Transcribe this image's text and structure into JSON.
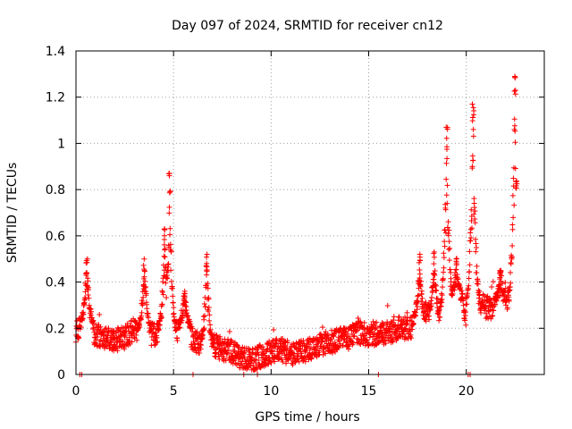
{
  "chart_data": {
    "type": "scatter",
    "title": "Day 097 of 2024, SRMTID for receiver cn12",
    "xlabel": "GPS time / hours",
    "ylabel": "SRMTID / TECUs",
    "xlim": [
      0,
      24
    ],
    "ylim": [
      0,
      1.4
    ],
    "xticks": [
      0,
      5,
      10,
      15,
      20
    ],
    "xtick_labels": [
      "0",
      "5",
      "10",
      "15",
      "20"
    ],
    "yticks": [
      0,
      0.2,
      0.4,
      0.6,
      0.8,
      1.0,
      1.2,
      1.4
    ],
    "ytick_labels": [
      "0",
      "0.2",
      "0.4",
      "0.6",
      "0.8",
      "1",
      "1.2",
      "1.4"
    ],
    "grid": true,
    "marker": "+",
    "color": "#ff0000",
    "x_range": [
      0.0,
      22.6
    ],
    "baseline_profile": [
      [
        0.0,
        0.19
      ],
      [
        0.5,
        0.22
      ],
      [
        1.0,
        0.17
      ],
      [
        1.5,
        0.16
      ],
      [
        2.0,
        0.15
      ],
      [
        2.5,
        0.16
      ],
      [
        3.0,
        0.2
      ],
      [
        3.5,
        0.19
      ],
      [
        4.0,
        0.17
      ],
      [
        4.5,
        0.2
      ],
      [
        5.0,
        0.17
      ],
      [
        5.5,
        0.22
      ],
      [
        6.0,
        0.15
      ],
      [
        6.5,
        0.12
      ],
      [
        7.0,
        0.13
      ],
      [
        7.5,
        0.11
      ],
      [
        8.0,
        0.1
      ],
      [
        8.5,
        0.07
      ],
      [
        9.0,
        0.06
      ],
      [
        9.5,
        0.08
      ],
      [
        10.0,
        0.1
      ],
      [
        10.5,
        0.11
      ],
      [
        11.0,
        0.08
      ],
      [
        11.5,
        0.1
      ],
      [
        12.0,
        0.11
      ],
      [
        12.5,
        0.13
      ],
      [
        13.0,
        0.14
      ],
      [
        13.5,
        0.15
      ],
      [
        14.0,
        0.16
      ],
      [
        14.5,
        0.18
      ],
      [
        15.0,
        0.17
      ],
      [
        15.5,
        0.18
      ],
      [
        16.0,
        0.18
      ],
      [
        16.5,
        0.2
      ],
      [
        17.0,
        0.2
      ],
      [
        17.5,
        0.22
      ],
      [
        18.0,
        0.27
      ],
      [
        18.5,
        0.22
      ],
      [
        19.0,
        0.3
      ],
      [
        19.5,
        0.33
      ],
      [
        20.0,
        0.26
      ],
      [
        20.5,
        0.34
      ],
      [
        21.0,
        0.29
      ],
      [
        21.5,
        0.29
      ],
      [
        22.0,
        0.33
      ],
      [
        22.6,
        0.33
      ]
    ],
    "peaks": [
      {
        "x": 0.55,
        "y": 0.5
      },
      {
        "x": 3.5,
        "y": 0.5
      },
      {
        "x": 4.55,
        "y": 0.63
      },
      {
        "x": 4.8,
        "y": 0.87
      },
      {
        "x": 5.55,
        "y": 0.36
      },
      {
        "x": 6.7,
        "y": 0.52
      },
      {
        "x": 17.6,
        "y": 0.52
      },
      {
        "x": 18.35,
        "y": 0.53
      },
      {
        "x": 19.0,
        "y": 1.07
      },
      {
        "x": 19.5,
        "y": 0.5
      },
      {
        "x": 20.35,
        "y": 1.17
      },
      {
        "x": 21.75,
        "y": 0.45
      },
      {
        "x": 22.5,
        "y": 1.29
      }
    ],
    "zero_points_x": [
      0.2,
      0.3,
      6.0,
      8.6,
      9.3,
      15.5,
      20.1,
      20.2
    ]
  }
}
